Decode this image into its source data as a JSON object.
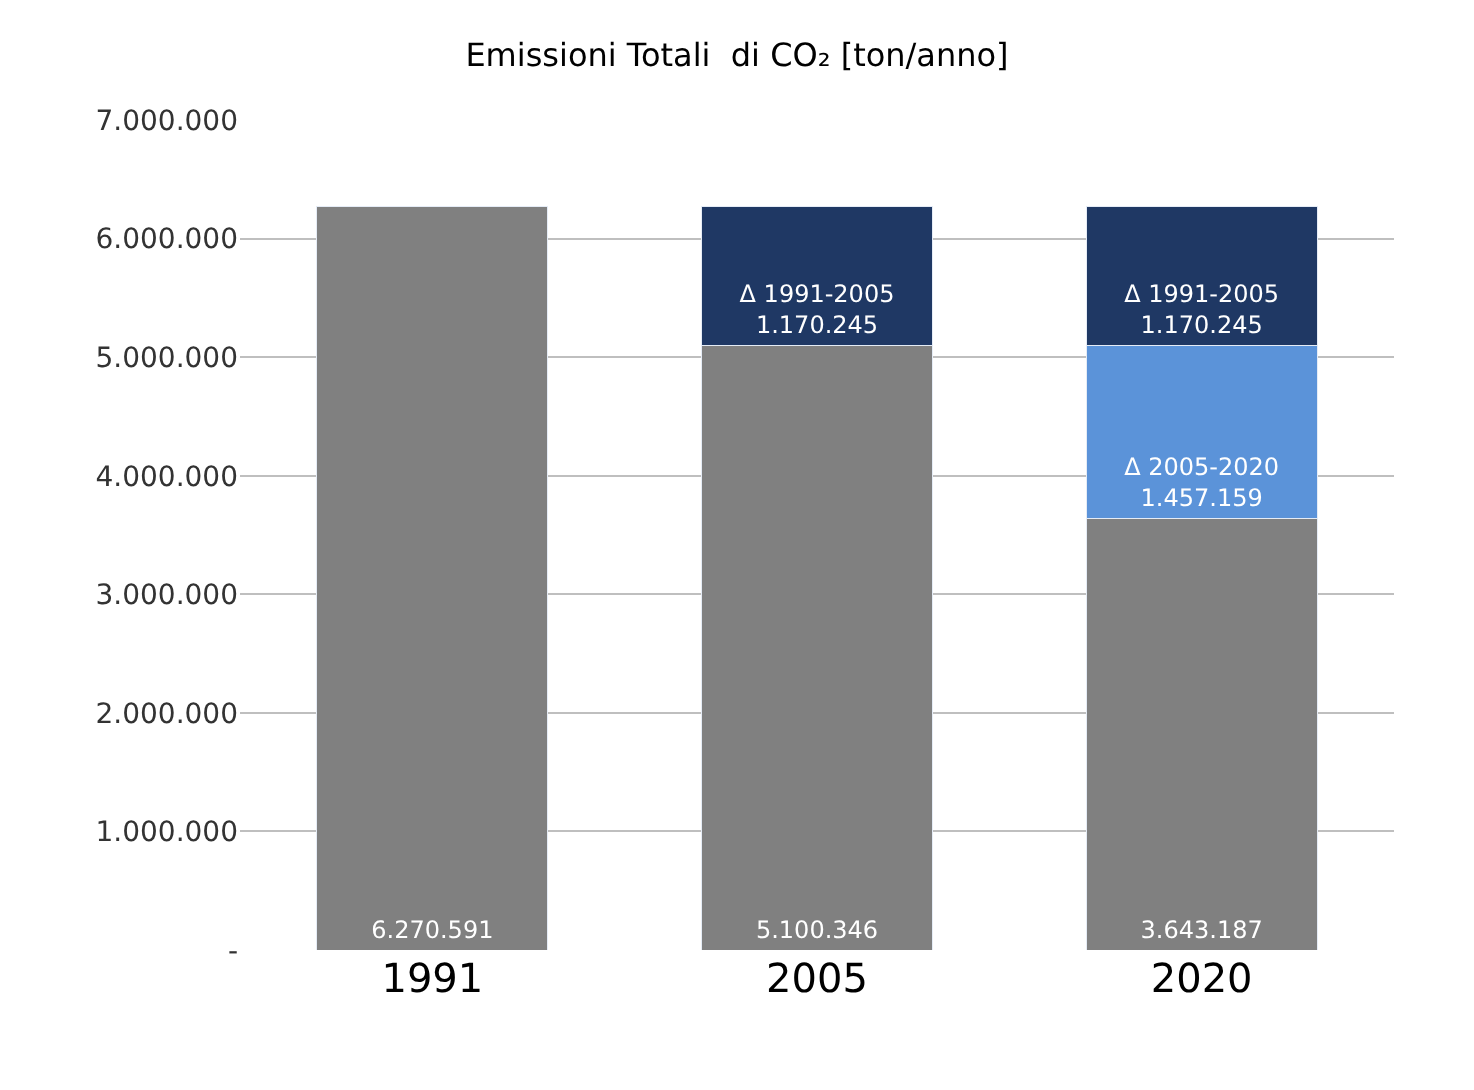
{
  "chart_data": {
    "type": "bar",
    "title": "Emissioni Totali  di CO₂ [ton/anno]",
    "categories": [
      "1991",
      "2005",
      "2020"
    ],
    "stacked": true,
    "series": [
      {
        "color": "#808080",
        "values": [
          6270591,
          5100346,
          3643187
        ],
        "value_labels": [
          "6.270.591",
          "5.100.346",
          "3.643.187"
        ]
      },
      {
        "name": "Δ 2005-2020",
        "color": "#5b93d9",
        "values": [
          null,
          null,
          1457159
        ],
        "value_labels": [
          null,
          null,
          "1.457.159"
        ]
      },
      {
        "name": "Δ 1991-2005",
        "color": "#1f3864",
        "values": [
          null,
          1170245,
          1170245
        ],
        "value_labels": [
          null,
          "1.170.245",
          "1.170.245"
        ]
      }
    ],
    "ylim": [
      0,
      7000000
    ],
    "yticks": [
      {
        "value": 0,
        "label": "-"
      },
      {
        "value": 1000000,
        "label": "1.000.000"
      },
      {
        "value": 2000000,
        "label": "2.000.000"
      },
      {
        "value": 3000000,
        "label": "3.000.000"
      },
      {
        "value": 4000000,
        "label": "4.000.000"
      },
      {
        "value": 5000000,
        "label": "5.000.000"
      },
      {
        "value": 6000000,
        "label": "6.000.000"
      },
      {
        "value": 7000000,
        "label": "7.000.000"
      }
    ],
    "grid": "y",
    "legend": false
  }
}
